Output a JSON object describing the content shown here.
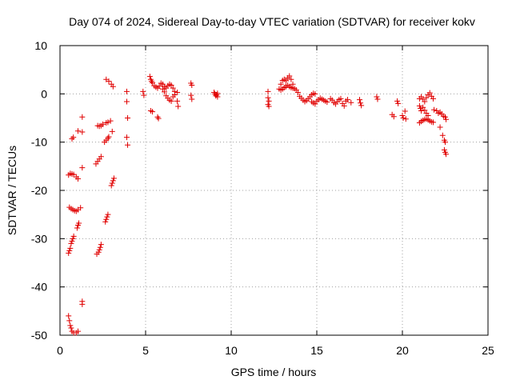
{
  "chart_data": {
    "type": "scatter",
    "title": "Day 074 of 2024, Sidereal Day-to-day VTEC variation (SDTVAR) for receiver kokv",
    "xlabel": "GPS time / hours",
    "ylabel": "SDTVAR / TECUs",
    "xlim": [
      0,
      25
    ],
    "ylim": [
      -50,
      10
    ],
    "xticks": [
      0,
      5,
      10,
      15,
      20,
      25
    ],
    "yticks": [
      -50,
      -40,
      -30,
      -20,
      -10,
      0,
      10
    ],
    "grid": true,
    "marker_color": "#e00000",
    "series": [
      {
        "name": "SDTVAR",
        "points": [
          [
            0.5,
            -46
          ],
          [
            0.55,
            -47
          ],
          [
            0.6,
            -48
          ],
          [
            0.65,
            -48.5
          ],
          [
            0.7,
            -49.2
          ],
          [
            0.8,
            -49.5
          ],
          [
            0.95,
            -49.5
          ],
          [
            1.05,
            -49.2
          ],
          [
            0.5,
            -33
          ],
          [
            0.55,
            -32.5
          ],
          [
            0.6,
            -32
          ],
          [
            0.65,
            -31
          ],
          [
            0.7,
            -30.5
          ],
          [
            0.75,
            -30
          ],
          [
            0.8,
            -29.5
          ],
          [
            0.55,
            -23.5
          ],
          [
            0.65,
            -23.8
          ],
          [
            0.75,
            -24
          ],
          [
            0.85,
            -24.2
          ],
          [
            0.95,
            -24.3
          ],
          [
            1.05,
            -24
          ],
          [
            1.2,
            -23.6
          ],
          [
            0.5,
            -16.8
          ],
          [
            0.6,
            -16.5
          ],
          [
            0.7,
            -16.6
          ],
          [
            0.8,
            -16.7
          ],
          [
            0.95,
            -17.2
          ],
          [
            1.05,
            -17.6
          ],
          [
            0.7,
            -9.3
          ],
          [
            0.78,
            -9
          ],
          [
            1.05,
            -7.7
          ],
          [
            1.3,
            -7.9
          ],
          [
            1.3,
            -4.8
          ],
          [
            1.0,
            -27.8
          ],
          [
            1.05,
            -27.2
          ],
          [
            1.1,
            -26.8
          ],
          [
            1.3,
            -43
          ],
          [
            1.3,
            -43.6
          ],
          [
            1.3,
            -15.3
          ],
          [
            2.15,
            -33.2
          ],
          [
            2.25,
            -32.8
          ],
          [
            2.3,
            -32.3
          ],
          [
            2.35,
            -31.8
          ],
          [
            2.4,
            -31.2
          ],
          [
            2.1,
            -14.5
          ],
          [
            2.2,
            -14
          ],
          [
            2.3,
            -13.5
          ],
          [
            2.4,
            -13
          ],
          [
            2.2,
            -6.6
          ],
          [
            2.3,
            -6.7
          ],
          [
            2.4,
            -6.6
          ],
          [
            2.5,
            -6.3
          ],
          [
            2.65,
            -26.5
          ],
          [
            2.7,
            -26
          ],
          [
            2.75,
            -25.5
          ],
          [
            2.8,
            -25
          ],
          [
            2.6,
            -10
          ],
          [
            2.7,
            -9.6
          ],
          [
            2.8,
            -9.2
          ],
          [
            2.85,
            -8.9
          ],
          [
            2.7,
            -6
          ],
          [
            2.8,
            -5.9
          ],
          [
            2.95,
            -5.6
          ],
          [
            3.05,
            -7.8
          ],
          [
            2.7,
            3
          ],
          [
            2.85,
            2.6
          ],
          [
            3.0,
            2
          ],
          [
            3.1,
            1.5
          ],
          [
            3.0,
            -19
          ],
          [
            3.05,
            -18.5
          ],
          [
            3.1,
            -18
          ],
          [
            3.15,
            -17.5
          ],
          [
            3.9,
            0.5
          ],
          [
            3.9,
            -1.6
          ],
          [
            3.95,
            -5
          ],
          [
            3.9,
            -9
          ],
          [
            3.95,
            -10.6
          ],
          [
            4.85,
            0.5
          ],
          [
            4.9,
            -0.3
          ],
          [
            5.25,
            3.6
          ],
          [
            5.3,
            3
          ],
          [
            5.35,
            2.6
          ],
          [
            5.4,
            2.3
          ],
          [
            5.5,
            1.7
          ],
          [
            5.6,
            1.4
          ],
          [
            5.7,
            1.2
          ],
          [
            5.8,
            1.6
          ],
          [
            5.9,
            2.2
          ],
          [
            6.0,
            2
          ],
          [
            6.1,
            1.5
          ],
          [
            6.2,
            1.2
          ],
          [
            6.3,
            1.7
          ],
          [
            6.4,
            2
          ],
          [
            6.5,
            1.8
          ],
          [
            6.6,
            1.2
          ],
          [
            6.7,
            0.5
          ],
          [
            6.0,
            1
          ],
          [
            6.1,
            0.4
          ],
          [
            6.2,
            -0.4
          ],
          [
            6.3,
            -0.9
          ],
          [
            6.4,
            -1.3
          ],
          [
            6.5,
            -1.5
          ],
          [
            6.6,
            -0.6
          ],
          [
            6.7,
            -0.2
          ],
          [
            5.3,
            -3.5
          ],
          [
            5.4,
            -3.7
          ],
          [
            5.7,
            -4.8
          ],
          [
            5.75,
            -5.1
          ],
          [
            6.85,
            0.3
          ],
          [
            6.85,
            -1.5
          ],
          [
            6.9,
            -2.6
          ],
          [
            7.65,
            2.2
          ],
          [
            7.7,
            1.8
          ],
          [
            7.65,
            -0.3
          ],
          [
            7.7,
            -1.1
          ],
          [
            9.0,
            0.3
          ],
          [
            9.05,
            0
          ],
          [
            9.1,
            -0.4
          ],
          [
            9.15,
            -0.2
          ],
          [
            9.2,
            0.1
          ],
          [
            9.2,
            -0.6
          ],
          [
            12.15,
            0.5
          ],
          [
            12.15,
            -0.8
          ],
          [
            12.2,
            -1.5
          ],
          [
            12.15,
            -2.2
          ],
          [
            12.2,
            -2.6
          ],
          [
            12.8,
            1
          ],
          [
            12.9,
            2
          ],
          [
            13.0,
            2.8
          ],
          [
            13.1,
            3
          ],
          [
            13.2,
            2.7
          ],
          [
            13.3,
            3.3
          ],
          [
            13.4,
            3.7
          ],
          [
            13.5,
            3
          ],
          [
            13.6,
            2
          ],
          [
            12.9,
            0.8
          ],
          [
            13.0,
            1
          ],
          [
            13.1,
            1.3
          ],
          [
            13.2,
            1.5
          ],
          [
            13.3,
            1.8
          ],
          [
            13.4,
            1.5
          ],
          [
            13.5,
            1.3
          ],
          [
            13.6,
            1.2
          ],
          [
            13.7,
            1.1
          ],
          [
            13.8,
            0.8
          ],
          [
            13.9,
            0.3
          ],
          [
            14.0,
            -0.5
          ],
          [
            14.1,
            -0.9
          ],
          [
            14.2,
            -1.3
          ],
          [
            14.3,
            -1.6
          ],
          [
            14.4,
            -1.4
          ],
          [
            14.5,
            -1
          ],
          [
            14.6,
            -0.6
          ],
          [
            14.7,
            -0.2
          ],
          [
            14.8,
            0.1
          ],
          [
            14.9,
            0
          ],
          [
            14.7,
            -1.6
          ],
          [
            14.8,
            -1.9
          ],
          [
            14.9,
            -2.1
          ],
          [
            15.0,
            -1.5
          ],
          [
            15.1,
            -1.2
          ],
          [
            15.2,
            -0.9
          ],
          [
            15.3,
            -1.1
          ],
          [
            15.4,
            -1.3
          ],
          [
            15.5,
            -1.5
          ],
          [
            15.6,
            -1.7
          ],
          [
            15.8,
            -1
          ],
          [
            15.9,
            -1.3
          ],
          [
            16.0,
            -1.8
          ],
          [
            16.1,
            -2.1
          ],
          [
            16.2,
            -1.6
          ],
          [
            16.3,
            -1.2
          ],
          [
            16.4,
            -1
          ],
          [
            16.5,
            -2
          ],
          [
            16.6,
            -2.5
          ],
          [
            16.7,
            -1.5
          ],
          [
            16.8,
            -1.2
          ],
          [
            17.0,
            -1.8
          ],
          [
            17.5,
            -1.2
          ],
          [
            17.55,
            -1.9
          ],
          [
            17.6,
            -2.4
          ],
          [
            18.5,
            -0.6
          ],
          [
            18.55,
            -1.1
          ],
          [
            19.4,
            -4.3
          ],
          [
            19.5,
            -4.7
          ],
          [
            19.7,
            -1.5
          ],
          [
            19.75,
            -2
          ],
          [
            20.0,
            -4.5
          ],
          [
            20.05,
            -5
          ],
          [
            20.15,
            -3.6
          ],
          [
            20.2,
            -5.2
          ],
          [
            21.0,
            -1
          ],
          [
            21.1,
            -0.6
          ],
          [
            21.2,
            -1.1
          ],
          [
            21.3,
            -1.6
          ],
          [
            21.4,
            -0.8
          ],
          [
            21.5,
            -0.2
          ],
          [
            21.6,
            0.2
          ],
          [
            21.7,
            -0.5
          ],
          [
            21.8,
            -1
          ],
          [
            21.0,
            -2.5
          ],
          [
            21.05,
            -3
          ],
          [
            21.1,
            -3.5
          ],
          [
            21.2,
            -2.8
          ],
          [
            21.3,
            -3.4
          ],
          [
            21.4,
            -4
          ],
          [
            21.5,
            -4.5
          ],
          [
            21.0,
            -6
          ],
          [
            21.1,
            -5.7
          ],
          [
            21.2,
            -5.5
          ],
          [
            21.3,
            -5.3
          ],
          [
            21.4,
            -5.2
          ],
          [
            21.5,
            -5.4
          ],
          [
            21.6,
            -5.6
          ],
          [
            21.7,
            -5.8
          ],
          [
            21.8,
            -5.9
          ],
          [
            21.85,
            -3.3
          ],
          [
            22.0,
            -3.5
          ],
          [
            22.1,
            -4
          ],
          [
            22.2,
            -3.8
          ],
          [
            22.3,
            -4.2
          ],
          [
            22.4,
            -4.6
          ],
          [
            22.5,
            -4.8
          ],
          [
            22.55,
            -5.3
          ],
          [
            22.2,
            -6.9
          ],
          [
            22.35,
            -8.6
          ],
          [
            22.45,
            -9.6
          ],
          [
            22.5,
            -10
          ],
          [
            22.45,
            -11.6
          ],
          [
            22.5,
            -12.1
          ],
          [
            22.55,
            -12.5
          ]
        ]
      }
    ]
  }
}
